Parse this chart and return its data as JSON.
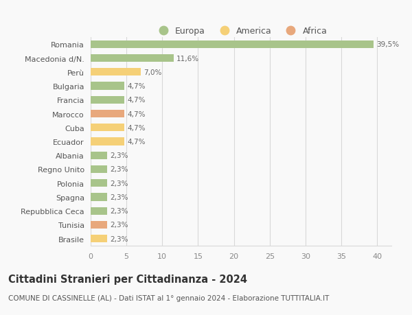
{
  "countries": [
    "Romania",
    "Macedonia d/N.",
    "Perù",
    "Bulgaria",
    "Francia",
    "Marocco",
    "Cuba",
    "Ecuador",
    "Albania",
    "Regno Unito",
    "Polonia",
    "Spagna",
    "Repubblica Ceca",
    "Tunisia",
    "Brasile"
  ],
  "values": [
    39.5,
    11.6,
    7.0,
    4.7,
    4.7,
    4.7,
    4.7,
    4.7,
    2.3,
    2.3,
    2.3,
    2.3,
    2.3,
    2.3,
    2.3
  ],
  "labels": [
    "39,5%",
    "11,6%",
    "7,0%",
    "4,7%",
    "4,7%",
    "4,7%",
    "4,7%",
    "4,7%",
    "2,3%",
    "2,3%",
    "2,3%",
    "2,3%",
    "2,3%",
    "2,3%",
    "2,3%"
  ],
  "continents": [
    "Europa",
    "Europa",
    "America",
    "Europa",
    "Europa",
    "Africa",
    "America",
    "America",
    "Europa",
    "Europa",
    "Europa",
    "Europa",
    "Europa",
    "Africa",
    "America"
  ],
  "colors": {
    "Europa": "#a8c48a",
    "America": "#f5d077",
    "Africa": "#e8a87c"
  },
  "xlim": [
    0,
    42
  ],
  "xticks": [
    0,
    5,
    10,
    15,
    20,
    25,
    30,
    35,
    40
  ],
  "title": "Cittadini Stranieri per Cittadinanza - 2024",
  "subtitle": "COMUNE DI CASSINELLE (AL) - Dati ISTAT al 1° gennaio 2024 - Elaborazione TUTTITALIA.IT",
  "background_color": "#f9f9f9",
  "grid_color": "#d8d8d8",
  "bar_height": 0.55,
  "title_fontsize": 10.5,
  "subtitle_fontsize": 7.5,
  "label_fontsize": 7.5,
  "ytick_fontsize": 8,
  "xtick_fontsize": 8,
  "legend_fontsize": 9
}
